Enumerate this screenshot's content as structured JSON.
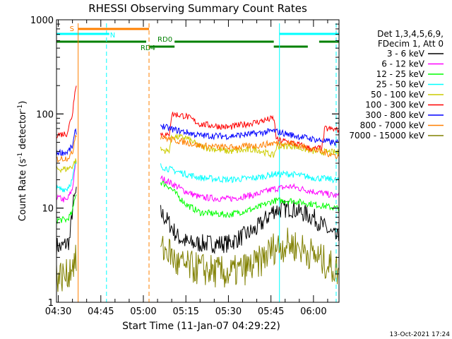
{
  "chart_data": {
    "type": "line",
    "title": "RHESSI Observing Summary Count Rates",
    "xlabel": "Start Time (11-Jan-07 04:29:22)",
    "ylabel": "Count Rate (s⁻¹ detector⁻¹)",
    "ylabel_base": "Count Rate (s",
    "ylabel_mid": " detector",
    "ylabel_end": ")",
    "ylabel_sup": "-1",
    "yscale": "log",
    "ylim": [
      1,
      1000
    ],
    "xlim": [
      "04:29:22",
      "06:09:00"
    ],
    "x_ticks": [
      "04:30",
      "04:45",
      "05:00",
      "05:15",
      "05:30",
      "05:45",
      "06:00"
    ],
    "y_ticks": [
      "1",
      "10",
      "100",
      "1000"
    ],
    "footer_date": "13-Oct-2021 17:24",
    "legend_header": [
      "Det 1,3,4,5,6,9,",
      "FDecim 1, Att 0"
    ],
    "legend_position": "right",
    "state_bars": [
      {
        "label": "S",
        "color": "#ff8000",
        "segments": [
          [
            "04:37",
            "05:02"
          ]
        ]
      },
      {
        "label": "N",
        "color": "#00ffff",
        "segments": [
          [
            "04:29:22",
            "04:48"
          ],
          [
            "05:48",
            "06:09"
          ]
        ]
      },
      {
        "label": "RD0",
        "color": "#008000",
        "segments": [
          [
            "04:29:22",
            "05:01"
          ],
          [
            "05:11",
            "05:46"
          ],
          [
            "06:02",
            "06:09"
          ]
        ]
      },
      {
        "label": "RD4",
        "color": "#008000",
        "segments": [
          [
            "05:02",
            "05:11"
          ],
          [
            "05:46",
            "05:58"
          ]
        ]
      }
    ],
    "vertical_lines": [
      {
        "time": "04:29:22",
        "color": "#00ffff",
        "style": "solid"
      },
      {
        "time": "04:37",
        "color": "#ff8000",
        "style": "solid"
      },
      {
        "time": "04:47",
        "color": "#00ffff",
        "style": "dashed"
      },
      {
        "time": "05:02",
        "color": "#ff8000",
        "style": "dashed"
      },
      {
        "time": "05:48",
        "color": "#00ffff",
        "style": "solid"
      },
      {
        "time": "06:08",
        "color": "#00ffff",
        "style": "dashed"
      }
    ],
    "series": [
      {
        "name": "3 - 6 keV",
        "color": "#000000",
        "points": [
          [
            "04:29:22",
            4
          ],
          [
            "04:31",
            3.8
          ],
          [
            "04:34",
            4.5
          ],
          [
            "04:35",
            10
          ],
          [
            "04:36",
            14
          ],
          [
            "05:06",
            9
          ],
          [
            "05:09",
            7
          ],
          [
            "05:12",
            5
          ],
          [
            "05:16",
            4.2
          ],
          [
            "05:30",
            4.2
          ],
          [
            "05:40",
            6
          ],
          [
            "05:46",
            9.5
          ],
          [
            "05:52",
            10
          ],
          [
            "06:00",
            8
          ],
          [
            "06:08",
            4.8
          ]
        ]
      },
      {
        "name": "6 - 12 keV",
        "color": "#ff00ff",
        "points": [
          [
            "04:29:22",
            13
          ],
          [
            "04:33",
            12
          ],
          [
            "04:35",
            16
          ],
          [
            "04:36",
            30
          ],
          [
            "05:06",
            21
          ],
          [
            "05:09",
            19
          ],
          [
            "05:15",
            15
          ],
          [
            "05:20",
            13
          ],
          [
            "05:30",
            12.5
          ],
          [
            "05:40",
            14
          ],
          [
            "05:46",
            16
          ],
          [
            "05:52",
            17
          ],
          [
            "06:00",
            15
          ],
          [
            "06:08",
            13.5
          ]
        ]
      },
      {
        "name": "12 - 25 keV",
        "color": "#00ff00",
        "points": [
          [
            "04:29:22",
            7.5
          ],
          [
            "04:33",
            7.5
          ],
          [
            "04:35",
            9
          ],
          [
            "04:36",
            14
          ],
          [
            "05:06",
            19
          ],
          [
            "05:09",
            17
          ],
          [
            "05:15",
            11
          ],
          [
            "05:20",
            9
          ],
          [
            "05:30",
            8.5
          ],
          [
            "05:40",
            10
          ],
          [
            "05:46",
            12
          ],
          [
            "05:52",
            12
          ],
          [
            "06:00",
            11
          ],
          [
            "06:08",
            10
          ]
        ]
      },
      {
        "name": "25 - 50 keV",
        "color": "#00ffff",
        "points": [
          [
            "04:29:22",
            16
          ],
          [
            "04:33",
            16
          ],
          [
            "04:35",
            20
          ],
          [
            "04:36",
            30
          ],
          [
            "05:06",
            28
          ],
          [
            "05:09",
            26
          ],
          [
            "05:15",
            23
          ],
          [
            "05:20",
            21
          ],
          [
            "05:30",
            20
          ],
          [
            "05:40",
            21
          ],
          [
            "05:46",
            23
          ],
          [
            "05:52",
            23
          ],
          [
            "06:00",
            21
          ],
          [
            "06:08",
            20
          ]
        ]
      },
      {
        "name": "50 - 100 keV",
        "color": "#cccc00",
        "points": [
          [
            "04:29:22",
            26
          ],
          [
            "04:33",
            26
          ],
          [
            "04:35",
            28
          ],
          [
            "04:36",
            32
          ],
          [
            "05:06",
            42
          ],
          [
            "05:09",
            40
          ],
          [
            "05:10",
            57
          ],
          [
            "05:15",
            56
          ],
          [
            "05:20",
            45
          ],
          [
            "05:30",
            40
          ],
          [
            "05:40",
            42
          ],
          [
            "05:46",
            36
          ],
          [
            "05:47",
            45
          ],
          [
            "05:52",
            46
          ],
          [
            "06:00",
            40
          ],
          [
            "06:08",
            39
          ]
        ]
      },
      {
        "name": "100 - 300 keV",
        "color": "#ff0000",
        "points": [
          [
            "04:29:22",
            60
          ],
          [
            "04:33",
            62
          ],
          [
            "04:35",
            100
          ],
          [
            "04:36",
            200
          ],
          [
            "05:06",
            62
          ],
          [
            "05:09",
            58
          ],
          [
            "05:10",
            100
          ],
          [
            "05:15",
            95
          ],
          [
            "05:20",
            78
          ],
          [
            "05:30",
            72
          ],
          [
            "05:40",
            82
          ],
          [
            "05:46",
            90
          ],
          [
            "05:47",
            53
          ],
          [
            "05:52",
            50
          ],
          [
            "06:00",
            42
          ],
          [
            "06:03",
            44
          ],
          [
            "06:04",
            70
          ],
          [
            "06:08",
            68
          ]
        ]
      },
      {
        "name": "300 - 800 keV",
        "color": "#0000ff",
        "points": [
          [
            "04:29:22",
            39
          ],
          [
            "04:33",
            39
          ],
          [
            "04:35",
            45
          ],
          [
            "04:36",
            65
          ],
          [
            "05:06",
            76
          ],
          [
            "05:09",
            70
          ],
          [
            "05:15",
            64
          ],
          [
            "05:20",
            59
          ],
          [
            "05:30",
            58
          ],
          [
            "05:40",
            62
          ],
          [
            "05:46",
            66
          ],
          [
            "05:52",
            60
          ],
          [
            "06:00",
            54
          ],
          [
            "06:08",
            49
          ]
        ]
      },
      {
        "name": "800 - 7000 keV",
        "color": "#ff8000",
        "points": [
          [
            "04:29:22",
            33
          ],
          [
            "04:33",
            34
          ],
          [
            "04:35",
            38
          ],
          [
            "04:36",
            60
          ],
          [
            "05:06",
            58
          ],
          [
            "05:09",
            54
          ],
          [
            "05:15",
            50
          ],
          [
            "05:20",
            46
          ],
          [
            "05:30",
            44
          ],
          [
            "05:40",
            46
          ],
          [
            "05:46",
            49
          ],
          [
            "05:52",
            49
          ],
          [
            "06:00",
            42
          ],
          [
            "06:08",
            36
          ]
        ]
      },
      {
        "name": "7000 - 15000 keV",
        "color": "#808000",
        "points": [
          [
            "04:29:22",
            1.9
          ],
          [
            "04:33",
            1.9
          ],
          [
            "04:35",
            2.6
          ],
          [
            "04:36",
            2.7
          ],
          [
            "05:06",
            3.6
          ],
          [
            "05:09",
            3.5
          ],
          [
            "05:12",
            2.5
          ],
          [
            "05:30",
            2.0
          ],
          [
            "05:40",
            2.5
          ],
          [
            "05:46",
            3.8
          ],
          [
            "05:52",
            4.2
          ],
          [
            "06:00",
            3.2
          ],
          [
            "06:08",
            2.2
          ]
        ]
      }
    ]
  }
}
